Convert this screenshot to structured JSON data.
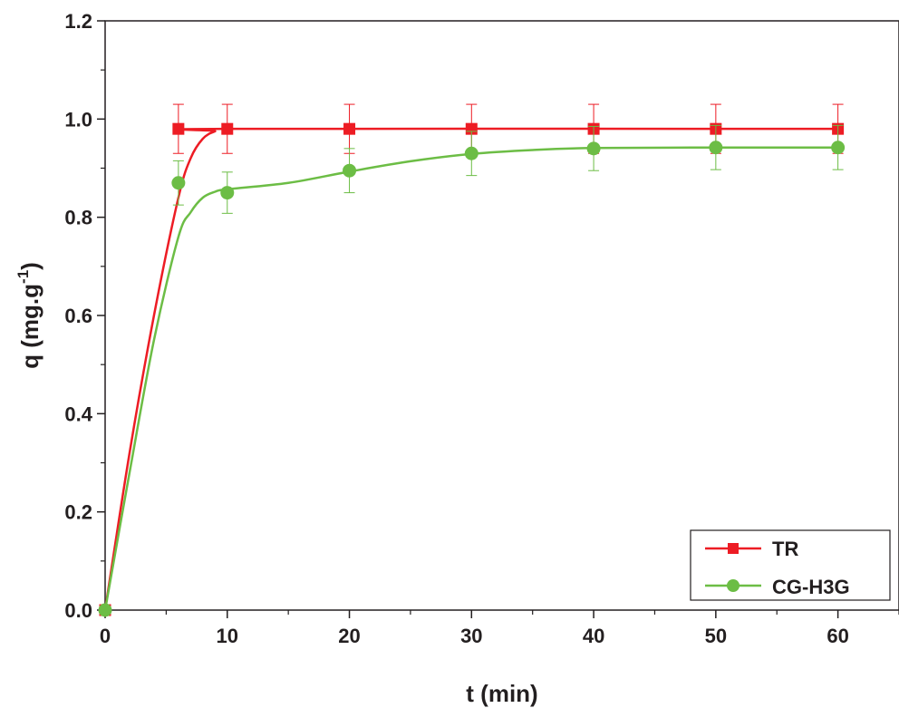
{
  "chart_data": {
    "type": "line",
    "title": "",
    "xlabel": "t (min)",
    "ylabel_main": "q (mg.g",
    "ylabel_sup": "-1",
    "ylabel_close": ")",
    "xlim": [
      0,
      65
    ],
    "ylim": [
      0.0,
      1.2
    ],
    "xticks": [
      0,
      10,
      20,
      30,
      40,
      50,
      60
    ],
    "xtick_labels": [
      "0",
      "10",
      "20",
      "30",
      "40",
      "50",
      "60"
    ],
    "yticks": [
      0.0,
      0.2,
      0.4,
      0.6,
      0.8,
      1.0,
      1.2
    ],
    "ytick_labels": [
      "0.0",
      "0.2",
      "0.4",
      "0.6",
      "0.8",
      "1.0",
      "1.2"
    ],
    "grid": false,
    "legend_position": "bottom-right",
    "series": [
      {
        "name": "TR",
        "color": "#ed1c24",
        "marker": "square",
        "x": [
          0,
          6,
          10,
          20,
          30,
          40,
          50,
          60
        ],
        "y": [
          0.0,
          0.98,
          0.98,
          0.98,
          0.98,
          0.98,
          0.98,
          0.98
        ],
        "err": [
          0,
          0.05,
          0.05,
          0.05,
          0.05,
          0.05,
          0.05,
          0.05
        ],
        "fit": [
          [
            0,
            0.0
          ],
          [
            2,
            0.32
          ],
          [
            4,
            0.6
          ],
          [
            6,
            0.84
          ],
          [
            7,
            0.92
          ],
          [
            8,
            0.96
          ],
          [
            9,
            0.975
          ],
          [
            10,
            0.98
          ],
          [
            60,
            0.98
          ]
        ]
      },
      {
        "name": "CG-H3G",
        "color": "#6cbd45",
        "marker": "circle",
        "x": [
          0,
          6,
          10,
          20,
          30,
          40,
          50,
          60
        ],
        "y": [
          0.0,
          0.87,
          0.85,
          0.895,
          0.93,
          0.94,
          0.942,
          0.942
        ],
        "err": [
          0,
          0.045,
          0.042,
          0.045,
          0.045,
          0.045,
          0.045,
          0.045
        ],
        "fit": [
          [
            0,
            0.0
          ],
          [
            2,
            0.28
          ],
          [
            4,
            0.55
          ],
          [
            6,
            0.76
          ],
          [
            7,
            0.81
          ],
          [
            8,
            0.84
          ],
          [
            9,
            0.852
          ],
          [
            10,
            0.857
          ],
          [
            15,
            0.87
          ],
          [
            20,
            0.893
          ],
          [
            25,
            0.914
          ],
          [
            30,
            0.929
          ],
          [
            35,
            0.937
          ],
          [
            40,
            0.941
          ],
          [
            50,
            0.942
          ],
          [
            60,
            0.942
          ]
        ]
      }
    ]
  }
}
